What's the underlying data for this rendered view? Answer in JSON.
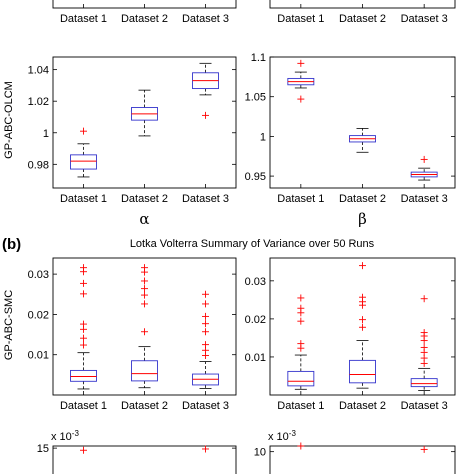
{
  "figure": {
    "panel_label": "(b)",
    "title": "Lotka Volterra Summary of Variance over 50 Runs",
    "row_label_a": "GP-ABC-OLCM",
    "row_label_b": "GP-ABC-SMC"
  },
  "colors": {
    "box": "#3333cc",
    "median": "#ff0000",
    "outlier": "#ff0000",
    "whisker": "#000000"
  },
  "chart_data": [
    {
      "id": "top-left-cut",
      "type": "box",
      "categories": [
        "Dataset 1",
        "Dataset 2",
        "Dataset 3"
      ],
      "ylim": [
        0,
        1
      ],
      "yticks": [],
      "boxes": [],
      "xlabel": "",
      "ylabel": "",
      "grid": false
    },
    {
      "id": "top-right-cut",
      "type": "box",
      "categories": [
        "Dataset 1",
        "Dataset 2",
        "Dataset 3"
      ],
      "ylim": [
        0,
        1
      ],
      "yticks": [],
      "boxes": [],
      "xlabel": "",
      "ylabel": "",
      "grid": false
    },
    {
      "id": "olcm-alpha",
      "type": "box",
      "categories": [
        "Dataset 1",
        "Dataset 2",
        "Dataset 3"
      ],
      "ylim": [
        0.965,
        1.048
      ],
      "yticks": [
        0.98,
        1,
        1.02,
        1.04
      ],
      "ytick_labels": [
        "0.98",
        "1",
        "1.02",
        "1.04"
      ],
      "xlabel": "α",
      "ylabel": "GP-ABC-OLCM",
      "grid": false,
      "boxes": [
        {
          "low": 0.972,
          "q1": 0.977,
          "median": 0.982,
          "q3": 0.986,
          "high": 0.993,
          "outliers": [
            1.001
          ]
        },
        {
          "low": 0.998,
          "q1": 1.008,
          "median": 1.012,
          "q3": 1.016,
          "high": 1.027,
          "outliers": []
        },
        {
          "low": 1.024,
          "q1": 1.028,
          "median": 1.033,
          "q3": 1.038,
          "high": 1.044,
          "outliers": [
            1.011
          ]
        }
      ]
    },
    {
      "id": "olcm-beta",
      "type": "box",
      "categories": [
        "Dataset 1",
        "Dataset 2",
        "Dataset 3"
      ],
      "ylim": [
        0.935,
        1.1
      ],
      "yticks": [
        0.95,
        1,
        1.05,
        1.1
      ],
      "ytick_labels": [
        "0.95",
        "1",
        "1.05",
        "1.1"
      ],
      "xlabel": "β",
      "ylabel": "",
      "grid": false,
      "boxes": [
        {
          "low": 1.061,
          "q1": 1.065,
          "median": 1.069,
          "q3": 1.073,
          "high": 1.081,
          "outliers": [
            1.092,
            1.047
          ]
        },
        {
          "low": 0.98,
          "q1": 0.993,
          "median": 0.997,
          "q3": 1.001,
          "high": 1.01,
          "outliers": []
        },
        {
          "low": 0.945,
          "q1": 0.949,
          "median": 0.952,
          "q3": 0.955,
          "high": 0.96,
          "outliers": [
            0.971
          ]
        }
      ]
    },
    {
      "id": "smc-var-1",
      "type": "box",
      "categories": [
        "Dataset 1",
        "Dataset 2",
        "Dataset 3"
      ],
      "ylim": [
        0,
        0.034
      ],
      "yticks": [
        0.01,
        0.02,
        0.03
      ],
      "ytick_labels": [
        "0.01",
        "0.02",
        "0.03"
      ],
      "xlabel": "",
      "ylabel": "GP-ABC-SMC",
      "grid": false,
      "boxes": [
        {
          "low": 0.0015,
          "q1": 0.0034,
          "median": 0.0046,
          "q3": 0.0061,
          "high": 0.0105,
          "outliers": [
            0.0316,
            0.0306,
            0.0277,
            0.0251,
            0.0176,
            0.0163,
            0.0141,
            0.0124
          ]
        },
        {
          "low": 0.0018,
          "q1": 0.0035,
          "median": 0.0053,
          "q3": 0.0085,
          "high": 0.012,
          "outliers": [
            0.0316,
            0.0305,
            0.0283,
            0.0264,
            0.0248,
            0.0226,
            0.0157
          ]
        },
        {
          "low": 0.0016,
          "q1": 0.0025,
          "median": 0.0039,
          "q3": 0.0052,
          "high": 0.0083,
          "outliers": [
            0.025,
            0.0226,
            0.0195,
            0.0177,
            0.0157,
            0.0125,
            0.0111,
            0.0098
          ]
        }
      ]
    },
    {
      "id": "smc-var-2",
      "type": "box",
      "categories": [
        "Dataset 1",
        "Dataset 2",
        "Dataset 3"
      ],
      "ylim": [
        0,
        0.036
      ],
      "yticks": [
        0.01,
        0.02,
        0.03
      ],
      "ytick_labels": [
        "0.01",
        "0.02",
        "0.03"
      ],
      "xlabel": "",
      "ylabel": "",
      "grid": false,
      "boxes": [
        {
          "low": 0.0015,
          "q1": 0.0024,
          "median": 0.0036,
          "q3": 0.0062,
          "high": 0.0105,
          "outliers": [
            0.0255,
            0.0228,
            0.0216,
            0.0194,
            0.0135,
            0.0123
          ]
        },
        {
          "low": 0.0018,
          "q1": 0.0032,
          "median": 0.0054,
          "q3": 0.0091,
          "high": 0.0143,
          "outliers": [
            0.034,
            0.0257,
            0.0245,
            0.0236,
            0.0198,
            0.0178
          ]
        },
        {
          "low": 0.0012,
          "q1": 0.0022,
          "median": 0.003,
          "q3": 0.0043,
          "high": 0.007,
          "outliers": [
            0.0253,
            0.0164,
            0.0155,
            0.0143,
            0.0125,
            0.0112,
            0.0097,
            0.0083
          ]
        }
      ]
    },
    {
      "id": "bottom-left-cut",
      "type": "box",
      "categories": [
        "Dataset 1",
        "Dataset 2",
        "Dataset 3"
      ],
      "ylim": [
        0,
        16
      ],
      "yticks": [
        15
      ],
      "ytick_labels": [
        "15"
      ],
      "exponent_label": "x 10",
      "exponent_power": "-3",
      "xlabel": "",
      "ylabel": "",
      "grid": false,
      "boxes": [
        {
          "outliers": [
            14
          ]
        },
        {
          "outliers": []
        },
        {
          "outliers": [
            14.6
          ]
        }
      ]
    },
    {
      "id": "bottom-right-cut",
      "type": "box",
      "categories": [
        "Dataset 1",
        "Dataset 2",
        "Dataset 3"
      ],
      "ylim": [
        0,
        12
      ],
      "yticks": [
        10
      ],
      "ytick_labels": [
        "10"
      ],
      "exponent_label": "x 10",
      "exponent_power": "-3",
      "xlabel": "",
      "ylabel": "",
      "grid": false,
      "boxes": [
        {
          "outliers": [
            12
          ]
        },
        {
          "outliers": []
        },
        {
          "outliers": [
            10.8
          ]
        }
      ]
    }
  ]
}
